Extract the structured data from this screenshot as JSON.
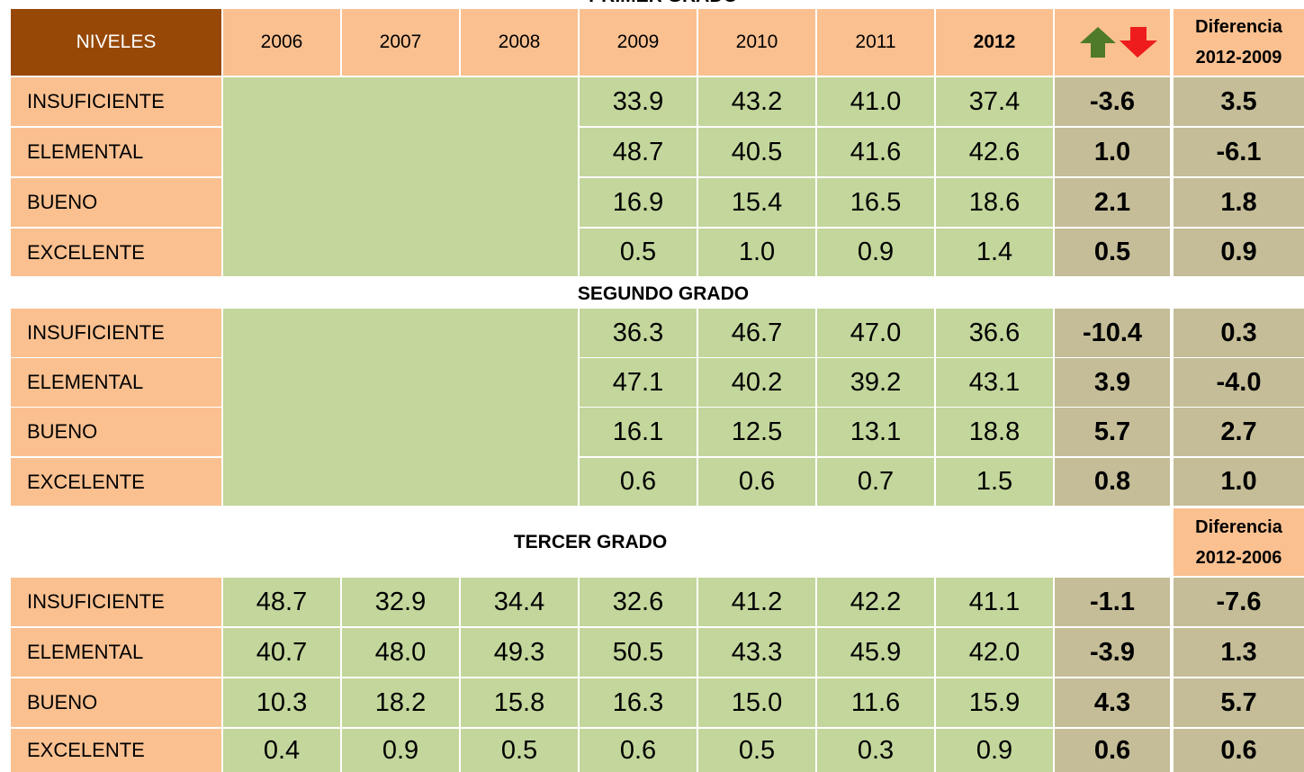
{
  "header": {
    "columns": [
      "NIVELES",
      "2006",
      "2007",
      "2008",
      "2009",
      "2010",
      "2011",
      "2012"
    ],
    "difference_label": [
      "Diferencia",
      "2012-2009"
    ]
  },
  "sections": [
    {
      "title": "PRIMER GRADO",
      "rows": [
        {
          "level": "INSUFICIENTE",
          "values": [
            "33.9",
            "43.2",
            "41.0",
            "37.4"
          ],
          "change": "-3.6",
          "difference": "3.5"
        },
        {
          "level": "ELEMENTAL",
          "values": [
            "48.7",
            "40.5",
            "41.6",
            "42.6"
          ],
          "change": "1.0",
          "difference": "-6.1"
        },
        {
          "level": "BUENO",
          "values": [
            "16.9",
            "15.4",
            "16.5",
            "18.6"
          ],
          "change": "2.1",
          "difference": "1.8"
        },
        {
          "level": "EXCELENTE",
          "values": [
            "0.5",
            "1.0",
            "0.9",
            "1.4"
          ],
          "change": "0.5",
          "difference": "0.9"
        }
      ]
    },
    {
      "title": "SEGUNDO GRADO",
      "rows": [
        {
          "level": "INSUFICIENTE",
          "values": [
            "36.3",
            "46.7",
            "47.0",
            "36.6"
          ],
          "change": "-10.4",
          "difference": "0.3"
        },
        {
          "level": "ELEMENTAL",
          "values": [
            "47.1",
            "40.2",
            "39.2",
            "43.1"
          ],
          "change": "3.9",
          "difference": "-4.0"
        },
        {
          "level": "BUENO",
          "values": [
            "16.1",
            "12.5",
            "13.1",
            "18.8"
          ],
          "change": "5.7",
          "difference": "2.7"
        },
        {
          "level": "EXCELENTE",
          "values": [
            "0.6",
            "0.6",
            "0.7",
            "1.5"
          ],
          "change": "0.8",
          "difference": "1.0"
        }
      ]
    },
    {
      "title": "TERCER GRADO",
      "difference_label": [
        "Diferencia",
        "2012-2006"
      ],
      "rows": [
        {
          "level": "INSUFICIENTE",
          "values": [
            "48.7",
            "32.9",
            "34.4",
            "32.6",
            "41.2",
            "42.2",
            "41.1"
          ],
          "change": "-1.1",
          "difference": "-7.6"
        },
        {
          "level": "ELEMENTAL",
          "values": [
            "40.7",
            "48.0",
            "49.3",
            "50.5",
            "43.3",
            "45.9",
            "42.0"
          ],
          "change": "-3.9",
          "difference": "1.3"
        },
        {
          "level": "BUENO",
          "values": [
            "10.3",
            "18.2",
            "15.8",
            "16.3",
            "15.0",
            "11.6",
            "15.9"
          ],
          "change": "4.3",
          "difference": "5.7"
        },
        {
          "level": "EXCELENTE",
          "values": [
            "0.4",
            "0.9",
            "0.5",
            "0.6",
            "0.5",
            "0.3",
            "0.9"
          ],
          "change": "0.6",
          "difference": "0.6"
        }
      ]
    }
  ]
}
